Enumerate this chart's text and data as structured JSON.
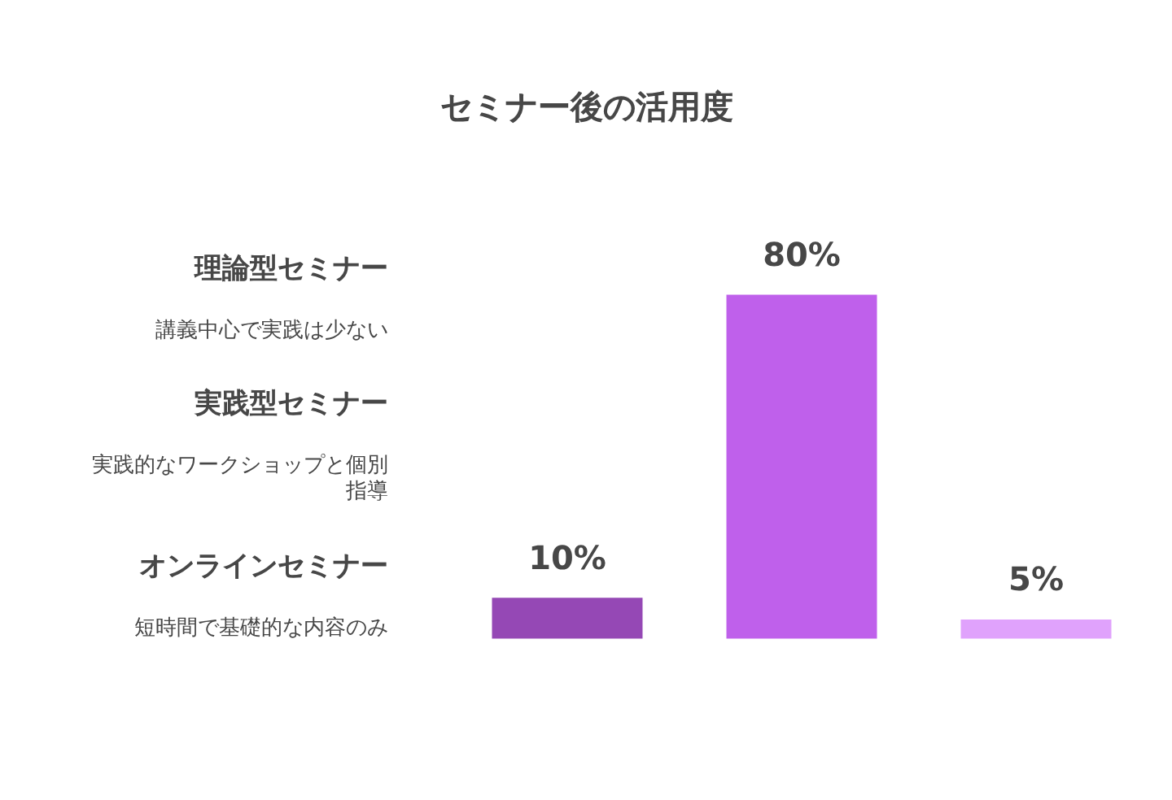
{
  "chart_data": {
    "type": "bar",
    "title": "セミナー後の活用度",
    "categories": [
      null,
      null,
      null
    ],
    "values": [
      10,
      80,
      5
    ],
    "colors": [
      "#9548b5",
      "#bf60eb",
      "#e0a2fc"
    ],
    "value_labels": [
      "10%",
      "80%",
      "5%"
    ],
    "annotations": [
      "理論型セミナー",
      "講義中心で実践は少ない",
      "実践型セミナー",
      "実践的なワークショップと個別指導",
      "オンラインセミナー",
      "短時間で基礎的な内容のみ"
    ]
  }
}
